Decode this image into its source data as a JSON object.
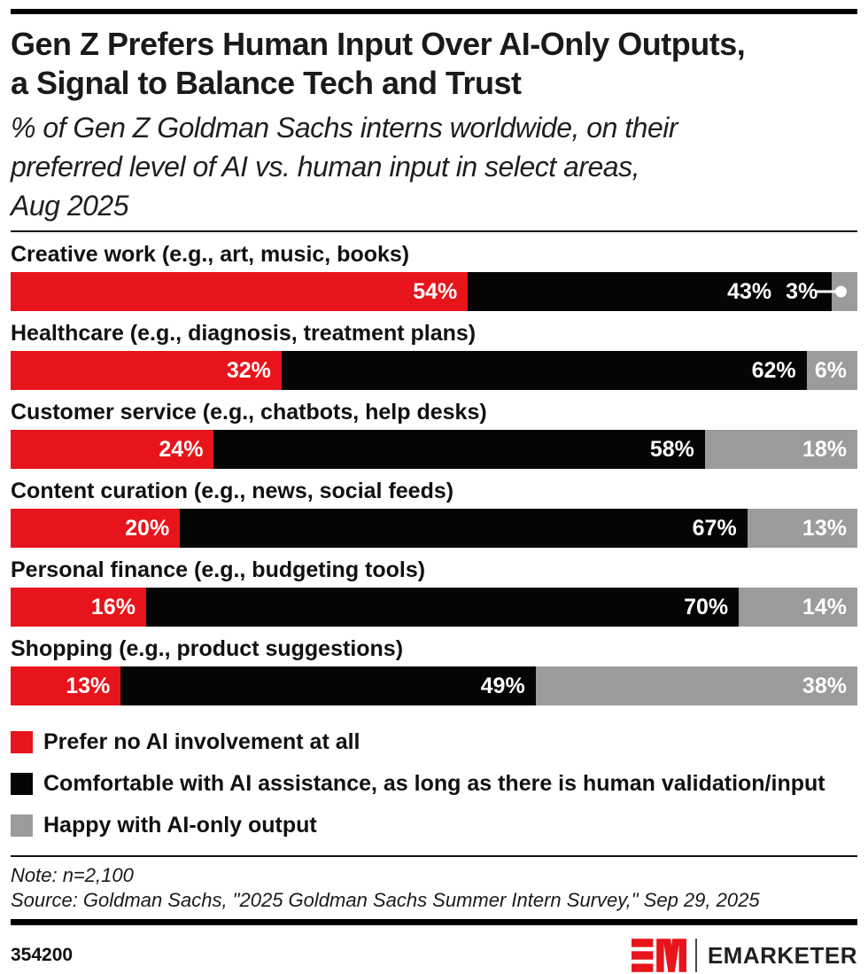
{
  "header": {
    "title_line1": "Gen Z Prefers Human Input Over AI-Only Outputs,",
    "title_line2": "a Signal to Balance Tech and Trust",
    "subtitle_line1": "% of Gen Z Goldman Sachs interns worldwide, on their",
    "subtitle_line2": "preferred level of AI vs. human input in select areas,",
    "subtitle_line3": "Aug 2025"
  },
  "colors": {
    "accent_red": "#e8141b",
    "bar_black": "#050505",
    "bar_gray": "#9b9b9b",
    "label_white": "#ffffff"
  },
  "chart_data": {
    "type": "bar",
    "orientation": "horizontal",
    "stacked": true,
    "xlim": [
      0,
      100
    ],
    "value_suffix": "%",
    "legend_position": "bottom",
    "grid": false,
    "categories": [
      "Creative work (e.g., art, music, books)",
      "Healthcare (e.g., diagnosis, treatment plans)",
      "Customer service (e.g., chatbots, help desks)",
      "Content curation (e.g., news, social feeds)",
      "Personal finance (e.g., budgeting tools)",
      "Shopping (e.g., product suggestions)"
    ],
    "series": [
      {
        "name": "Prefer no AI involvement at all",
        "color": "#e8141b",
        "values": [
          54,
          32,
          24,
          20,
          16,
          13
        ]
      },
      {
        "name": "Comfortable with AI assistance, as long as there is human validation/input",
        "color": "#050505",
        "values": [
          43,
          62,
          58,
          67,
          70,
          49
        ]
      },
      {
        "name": "Happy with AI-only output",
        "color": "#9b9b9b",
        "values": [
          3,
          6,
          18,
          13,
          14,
          38
        ]
      }
    ],
    "callout": {
      "category_index": 0,
      "series_index": 2,
      "style": "leader-line-dot"
    }
  },
  "footnotes": {
    "note": "Note: n=2,100",
    "source": "Source: Goldman Sachs, \"2025 Goldman Sachs Summer Intern Survey,\" Sep 29, 2025"
  },
  "footer": {
    "chart_id": "354200",
    "logo_mark": "EM",
    "brand": "EMARKETER"
  }
}
